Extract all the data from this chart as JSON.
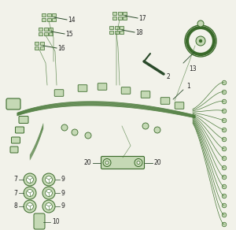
{
  "bg_color": "#f2f2ea",
  "line_color": "#4a7a3a",
  "dark_line": "#2a4a2a",
  "connector_fill": "#c5d9b5",
  "connector_edge": "#3a6a2a",
  "text_color": "#222222",
  "fig_w": 3.0,
  "fig_h": 2.92,
  "dpi": 100
}
